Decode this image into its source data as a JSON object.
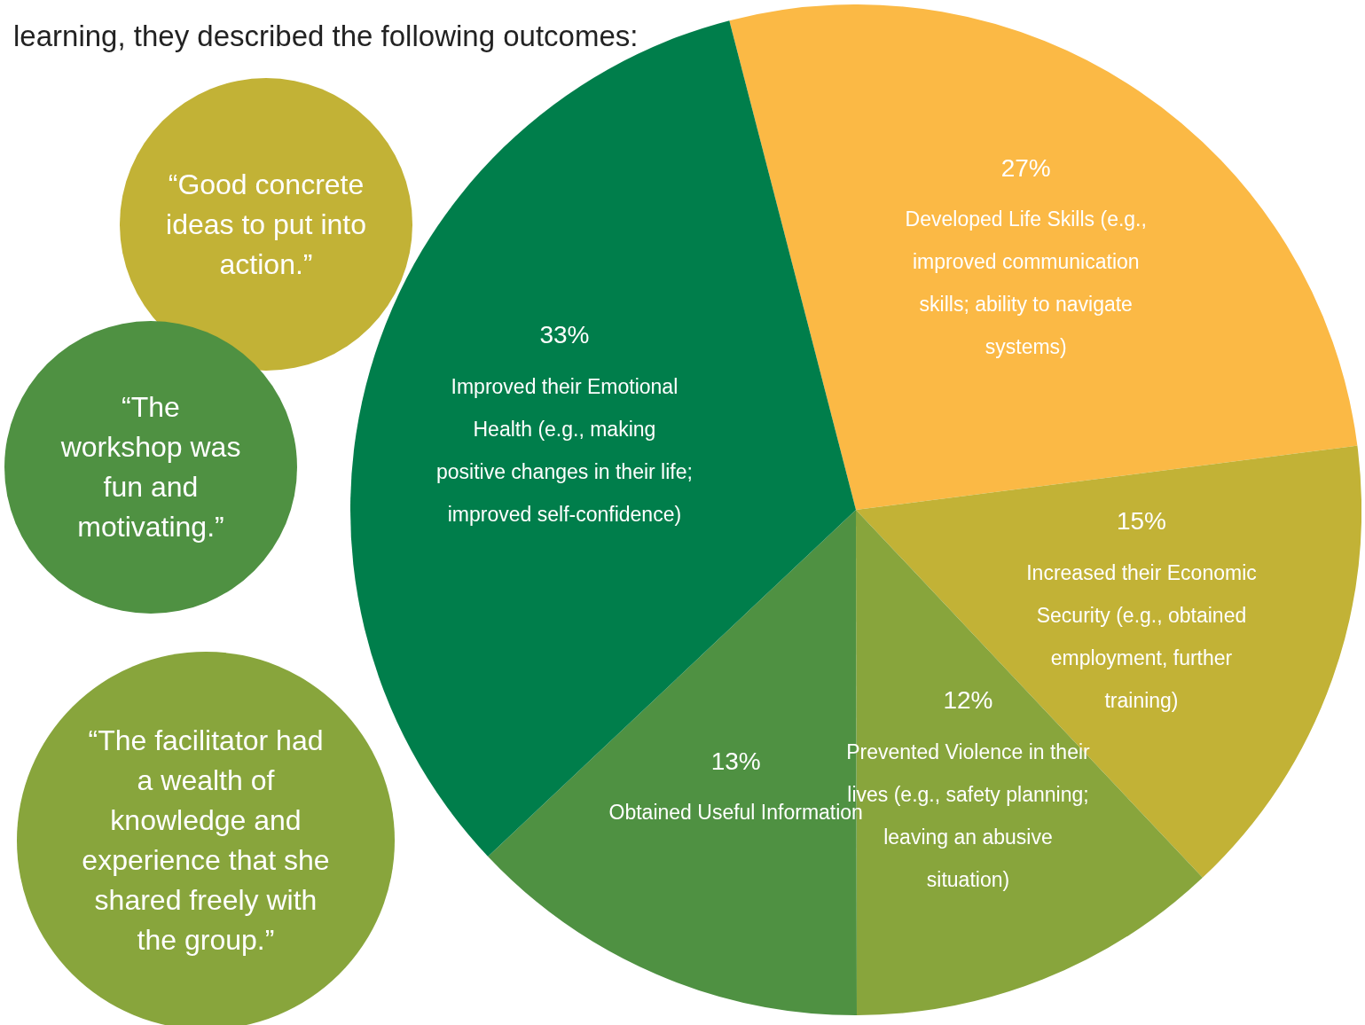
{
  "chart_data": {
    "type": "pie",
    "title": "learning, they described the following outcomes:",
    "categories": [
      "Developed Life Skills (e.g., improved communication skills; ability to navigate systems)",
      "Increased their Economic Security (e.g., obtained employment, further training)",
      "Prevented Violence in their lives (e.g., safety planning; leaving an abusive situation)",
      "Obtained Useful Information",
      "Improved their Emotional Health (e.g., making positive changes in their life; improved self-confidence)"
    ],
    "values": [
      27,
      15,
      12,
      13,
      33
    ],
    "value_labels": [
      "27%",
      "15%",
      "12%",
      "13%",
      "33%"
    ],
    "colors": [
      "#fbb945",
      "#c2b236",
      "#88a53c",
      "#4f9142",
      "#007e4b"
    ],
    "annotations": [
      "“Good concrete ideas to put into action.”",
      "“The workshop was fun and motivating.”",
      "“The facilitator had a wealth of knowledge and experience that she shared freely with the group.”"
    ],
    "legend": false
  }
}
